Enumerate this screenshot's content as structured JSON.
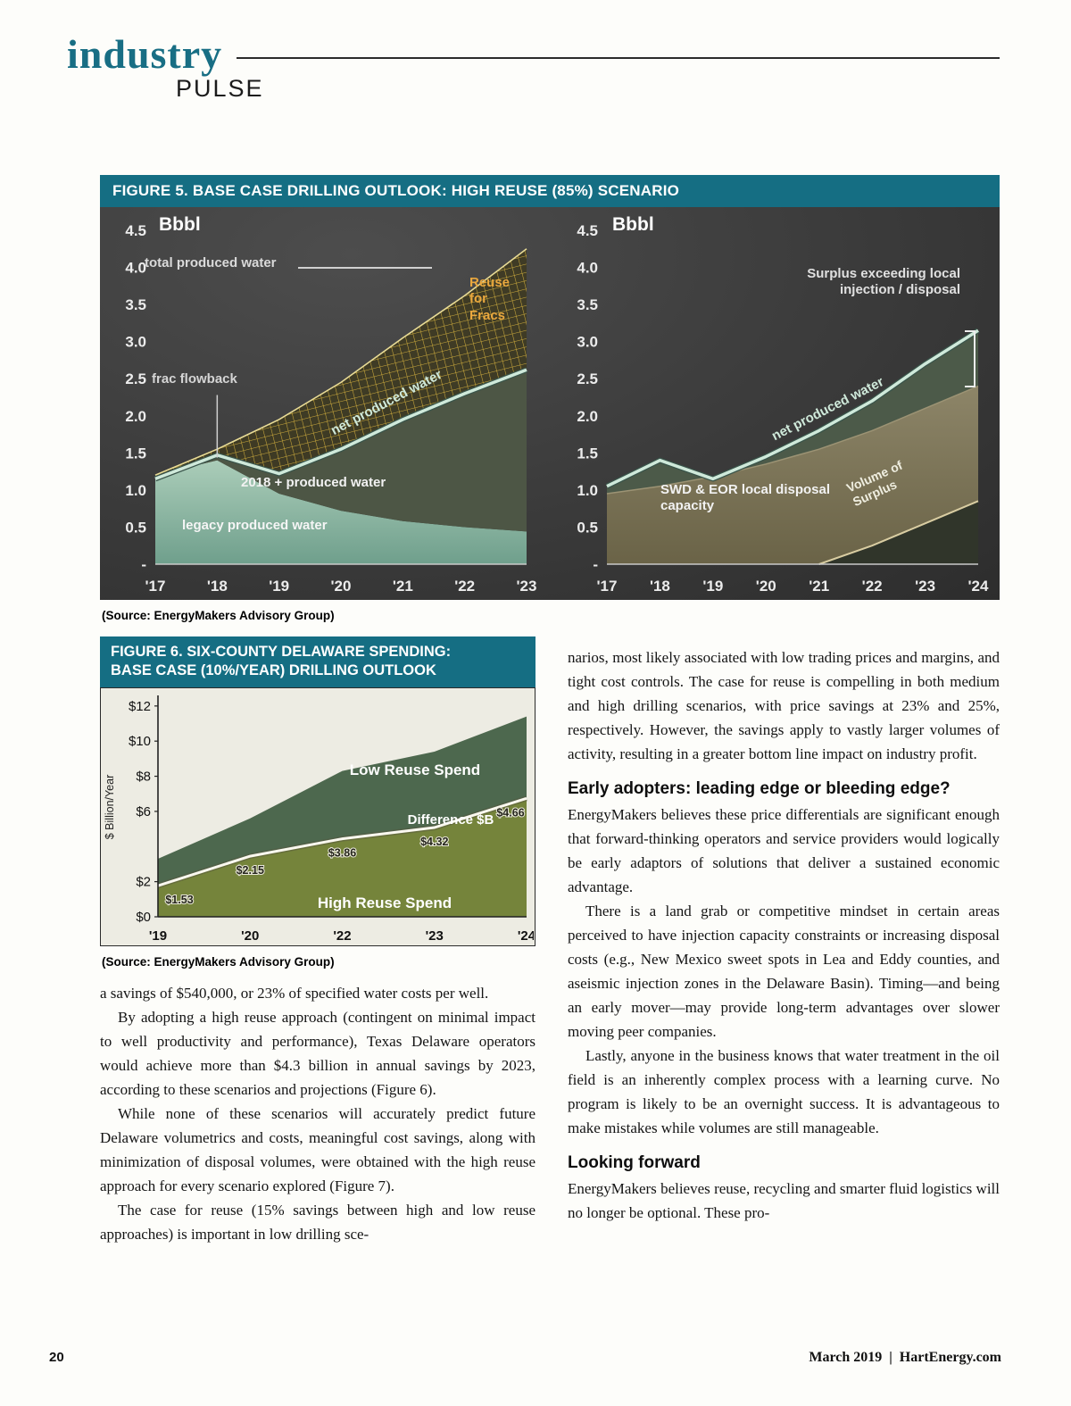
{
  "masthead": {
    "title": "industry",
    "subtitle": "PULSE"
  },
  "palette": {
    "teal_header": "#156e83",
    "masthead_teal": "#186e84",
    "chart_bg_dark": "#3b3b3b",
    "gold_hatch": "#d9b43c",
    "gold_label": "#eaa83e",
    "net_line_teal": "#cfe9da",
    "legacy_teal": "#8fb8a5",
    "band_2018_green": "#4d5645",
    "disposal_brown": "#7a7254",
    "surplus_dark": "#30352a",
    "fig6_dark_green": "#4d684e",
    "fig6_olive": "#75843b",
    "fig6_bg": "#edece3",
    "white_line": "#faf8ef"
  },
  "figure5": {
    "title": "FIGURE 5. BASE CASE DRILLING OUTLOOK: HIGH REUSE (85%) SCENARIO",
    "source": "(Source: EnergyMakers Advisory Group)"
  },
  "figure6": {
    "title_line1": "FIGURE 6. SIX-COUNTY DELAWARE SPENDING:",
    "title_line2": "BASE CASE (10%/YEAR) DRILLING OUTLOOK",
    "source": "(Source: EnergyMakers Advisory Group)"
  },
  "article": {
    "left": [
      "a savings of $540,000, or 23% of specified water costs per well.",
      "By adopting a high reuse approach (contingent on minimal impact to well productivity and performance), Texas Delaware operators would achieve more than $4.3 billion in annual savings by 2023, according to these scenarios and projections (Figure 6).",
      "While none of these scenarios will accurately predict future Delaware volumetrics and costs, meaningful cost savings, along with minimization of disposal volumes, were obtained with the high reuse approach for every scenario explored (Figure 7).",
      "The case for reuse (15% savings between high and low reuse approaches) is important in low drilling sce-"
    ],
    "heading1": "Early adopters: leading edge or bleeding edge?",
    "right": [
      "narios, most likely associated with low trading prices and margins, and tight cost controls. The case for reuse is compelling in both medium and high drilling scenarios, with price savings at 23% and 25%, respectively. However, the savings apply to vastly larger volumes of activity, resulting in a greater bottom line impact on industry profit.",
      "EnergyMakers believes these price differentials are significant enough that forward-thinking operators and service providers would logically be early adaptors of solutions that deliver a sustained economic advantage.",
      "There is a land grab or competitive mindset in certain areas perceived to have injection capacity constraints or increasing disposal costs (e.g., New Mexico sweet spots in Lea and Eddy counties, and aseismic injection zones in the Delaware Basin). Timing—and being an early mover—may provide long-term advantages over slower moving peer companies.",
      "Lastly, anyone in the business knows that water treatment in the oil field is an inherently complex process with a learning curve. No program is likely to be an overnight success. It is advantageous to make mistakes while volumes are still manageable.",
      "EnergyMakers believes reuse, recycling and smarter fluid logistics will no longer be optional. These pro-"
    ],
    "heading2": "Looking forward"
  },
  "footer": {
    "page_number": "20",
    "right_text": "March 2019  |  HartEnergy.com"
  },
  "chart_data": [
    {
      "id": "fig5_left",
      "type": "area",
      "title": "Base case drilling outlook: high reuse (85%) scenario — produced water volumes",
      "unit_label": "Bbbl",
      "x": [
        "'17",
        "'18",
        "'19",
        "'20",
        "'21",
        "'22",
        "'23"
      ],
      "ylim": [
        0,
        4.5
      ],
      "ytick_labels": [
        "4.5",
        "4.0",
        "3.5",
        "3.0",
        "2.5",
        "2.0",
        "1.5",
        "1.0",
        "0.5",
        "-"
      ],
      "series": [
        {
          "name": "legacy produced water",
          "values": [
            1.2,
            1.4,
            0.95,
            0.72,
            0.58,
            0.5,
            0.44
          ]
        },
        {
          "name": "2018 + produced water",
          "note": "band between legacy produced water and net produced water"
        },
        {
          "name": "net produced water",
          "values": [
            1.15,
            1.47,
            1.22,
            1.55,
            1.95,
            2.3,
            2.62
          ]
        },
        {
          "name": "total produced water",
          "values": [
            1.2,
            1.55,
            1.95,
            2.45,
            3.05,
            3.62,
            4.25
          ]
        },
        {
          "name": "Reuse for Fracs",
          "note": "hatched band between net and total produced water"
        }
      ],
      "annotations": {
        "total": "total produced water",
        "reuse": "Reuse\nfor\nFracs",
        "frac_flowback": "frac flowback",
        "net": "net produced water",
        "band2018": "2018 + produced water",
        "legacy": "legacy produced water"
      }
    },
    {
      "id": "fig5_right",
      "type": "area",
      "title": "Base case drilling outlook: high reuse (85%) scenario — disposal capacity vs. net produced water",
      "unit_label": "Bbbl",
      "x": [
        "'17",
        "'18",
        "'19",
        "'20",
        "'21",
        "'22",
        "'23",
        "'24"
      ],
      "ylim": [
        0,
        4.5
      ],
      "ytick_labels": [
        "4.5",
        "4.0",
        "3.5",
        "3.0",
        "2.5",
        "2.0",
        "1.5",
        "1.0",
        "0.5",
        "-"
      ],
      "series": [
        {
          "name": "SWD & EOR local disposal capacity",
          "values": [
            0.95,
            1.05,
            1.18,
            1.35,
            1.55,
            1.8,
            2.1,
            2.4
          ]
        },
        {
          "name": "net produced water",
          "values": [
            1.05,
            1.4,
            1.15,
            1.45,
            1.8,
            2.2,
            2.7,
            3.15
          ]
        },
        {
          "name": "Volume of Surplus",
          "values": [
            0,
            0,
            0,
            0,
            0,
            0.25,
            0.55,
            0.85
          ]
        }
      ],
      "annotations": {
        "surplus_note": "Surplus exceeding local\ninjection / disposal",
        "capacity": "SWD & EOR local disposal\ncapacity",
        "net": "net produced water",
        "surplus": "Volume of\nSurplus"
      }
    },
    {
      "id": "fig6",
      "type": "area",
      "title": "Six-county Delaware spending: base case (10%/year) drilling outlook",
      "ylabel": "$ Billion/Year",
      "x": [
        "'19",
        "'20",
        "'22",
        "'23",
        "'24"
      ],
      "ylim": [
        0,
        12.5
      ],
      "yticks": [
        {
          "value": 12,
          "label": "$12"
        },
        {
          "value": 10,
          "label": "$10"
        },
        {
          "value": 8,
          "label": "$8"
        },
        {
          "value": 6,
          "label": "$6"
        },
        {
          "value": 2,
          "label": "$2"
        },
        {
          "value": 0,
          "label": "$0"
        }
      ],
      "series": [
        {
          "name": "Low Reuse Spend",
          "values": [
            3.3,
            5.6,
            8.3,
            9.4,
            11.4
          ]
        },
        {
          "name": "High Reuse Spend",
          "values": [
            1.77,
            3.45,
            4.44,
            5.08,
            6.74
          ]
        },
        {
          "name": "Difference $B",
          "values": [
            1.53,
            2.15,
            3.86,
            4.32,
            4.66
          ],
          "value_labels": [
            "$1.53",
            "$2.15",
            "$3.86",
            "$4.32",
            "$4.66"
          ]
        }
      ]
    }
  ]
}
